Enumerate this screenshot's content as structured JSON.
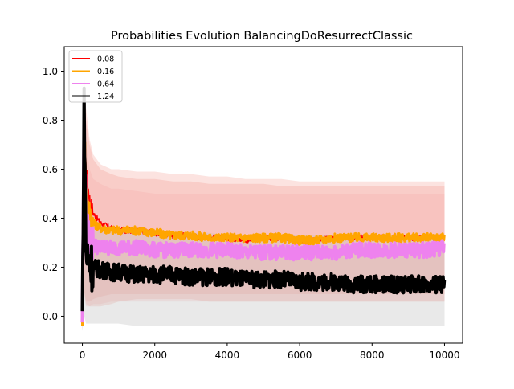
{
  "chart_data": {
    "type": "line",
    "title": "Probabilities Evolution BalancingDoResurrectClassic",
    "xlabel": "",
    "ylabel": "",
    "xlim": [
      -500,
      10500
    ],
    "ylim": [
      -0.11,
      1.1
    ],
    "x_ticks": [
      0,
      2000,
      4000,
      6000,
      8000,
      10000
    ],
    "x_tick_labels": [
      "0",
      "2000",
      "4000",
      "6000",
      "8000",
      "10000"
    ],
    "y_ticks": [
      0.0,
      0.2,
      0.4,
      0.6,
      0.8,
      1.0
    ],
    "y_tick_labels": [
      "0.0",
      "0.2",
      "0.4",
      "0.6",
      "0.8",
      "1.0"
    ],
    "grid": false,
    "legend_position": "top-left",
    "x": [
      0,
      50,
      100,
      200,
      300,
      500,
      800,
      1000,
      1500,
      2000,
      2500,
      3000,
      3500,
      4000,
      4500,
      5000,
      5500,
      6000,
      6500,
      7000,
      7500,
      8000,
      8500,
      9000,
      9500,
      10000
    ],
    "series": [
      {
        "name": "0.08",
        "color": "#ff0000",
        "values": [
          0.0,
          0.85,
          0.6,
          0.48,
          0.42,
          0.38,
          0.36,
          0.35,
          0.35,
          0.34,
          0.33,
          0.33,
          0.32,
          0.32,
          0.31,
          0.32,
          0.32,
          0.31,
          0.31,
          0.32,
          0.32,
          0.32,
          0.32,
          0.32,
          0.32,
          0.32
        ],
        "band_low": [
          -0.06,
          0.1,
          0.05,
          0.04,
          0.04,
          0.04,
          0.05,
          0.06,
          0.07,
          0.07,
          0.07,
          0.07,
          0.06,
          0.06,
          0.06,
          0.06,
          0.06,
          0.06,
          0.06,
          0.06,
          0.06,
          0.06,
          0.06,
          0.06,
          0.06,
          0.06
        ],
        "band_high": [
          0.3,
          1.0,
          0.85,
          0.72,
          0.66,
          0.62,
          0.6,
          0.6,
          0.59,
          0.59,
          0.58,
          0.58,
          0.57,
          0.57,
          0.56,
          0.56,
          0.56,
          0.55,
          0.55,
          0.55,
          0.55,
          0.55,
          0.55,
          0.55,
          0.55,
          0.55
        ]
      },
      {
        "name": "0.16",
        "color": "#ffa500",
        "values": [
          0.0,
          0.82,
          0.5,
          0.42,
          0.38,
          0.36,
          0.35,
          0.35,
          0.35,
          0.34,
          0.33,
          0.33,
          0.32,
          0.32,
          0.32,
          0.32,
          0.32,
          0.31,
          0.31,
          0.32,
          0.32,
          0.32,
          0.32,
          0.32,
          0.32,
          0.32
        ],
        "band_low": [
          -0.05,
          0.1,
          0.06,
          0.06,
          0.07,
          0.08,
          0.09,
          0.09,
          0.09,
          0.09,
          0.09,
          0.09,
          0.09,
          0.09,
          0.09,
          0.09,
          0.09,
          0.09,
          0.09,
          0.09,
          0.09,
          0.09,
          0.09,
          0.09,
          0.09,
          0.09
        ],
        "band_high": [
          0.3,
          0.98,
          0.8,
          0.7,
          0.64,
          0.6,
          0.58,
          0.57,
          0.56,
          0.56,
          0.55,
          0.55,
          0.54,
          0.54,
          0.54,
          0.54,
          0.53,
          0.53,
          0.53,
          0.53,
          0.53,
          0.53,
          0.53,
          0.53,
          0.53,
          0.53
        ]
      },
      {
        "name": "0.64",
        "color": "#ee82ee",
        "values": [
          0.0,
          0.8,
          0.35,
          0.3,
          0.29,
          0.28,
          0.28,
          0.28,
          0.28,
          0.27,
          0.27,
          0.27,
          0.27,
          0.27,
          0.26,
          0.26,
          0.26,
          0.26,
          0.26,
          0.26,
          0.27,
          0.27,
          0.27,
          0.27,
          0.27,
          0.28
        ],
        "band_low": [
          -0.04,
          0.08,
          0.04,
          0.04,
          0.05,
          0.05,
          0.06,
          0.06,
          0.06,
          0.06,
          0.06,
          0.06,
          0.06,
          0.06,
          0.06,
          0.06,
          0.06,
          0.06,
          0.06,
          0.06,
          0.06,
          0.06,
          0.06,
          0.06,
          0.06,
          0.06
        ],
        "band_high": [
          0.3,
          0.9,
          0.7,
          0.6,
          0.56,
          0.54,
          0.52,
          0.52,
          0.51,
          0.5,
          0.5,
          0.5,
          0.5,
          0.5,
          0.5,
          0.5,
          0.5,
          0.5,
          0.5,
          0.5,
          0.5,
          0.5,
          0.5,
          0.5,
          0.5,
          0.5
        ]
      },
      {
        "name": "1.24",
        "color": "#000000",
        "values": [
          0.0,
          0.88,
          0.25,
          0.22,
          0.2,
          0.19,
          0.18,
          0.18,
          0.17,
          0.17,
          0.17,
          0.16,
          0.16,
          0.16,
          0.15,
          0.15,
          0.15,
          0.14,
          0.14,
          0.14,
          0.13,
          0.13,
          0.13,
          0.13,
          0.13,
          0.13
        ],
        "band_low": [
          -0.06,
          0.0,
          -0.03,
          -0.03,
          -0.03,
          -0.03,
          -0.03,
          -0.03,
          -0.04,
          -0.04,
          -0.04,
          -0.04,
          -0.04,
          -0.04,
          -0.04,
          -0.04,
          -0.04,
          -0.04,
          -0.04,
          -0.04,
          -0.04,
          -0.04,
          -0.04,
          -0.04,
          -0.04,
          -0.04
        ],
        "band_high": [
          0.25,
          0.9,
          0.45,
          0.4,
          0.38,
          0.37,
          0.36,
          0.36,
          0.35,
          0.35,
          0.34,
          0.34,
          0.34,
          0.33,
          0.33,
          0.33,
          0.33,
          0.33,
          0.33,
          0.33,
          0.33,
          0.33,
          0.33,
          0.33,
          0.33,
          0.33
        ]
      }
    ],
    "colors": {
      "band": "#f08070"
    }
  }
}
